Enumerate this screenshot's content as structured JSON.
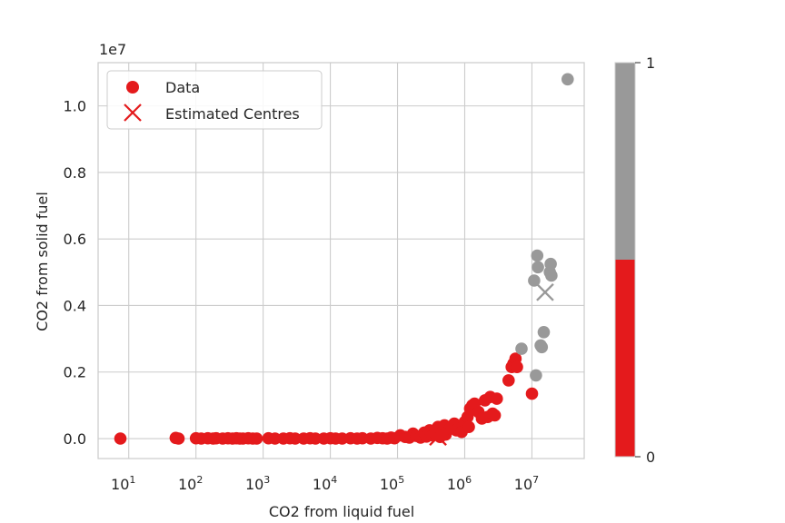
{
  "chart_data": {
    "type": "scatter",
    "title": "",
    "xlabel": "CO2 from liquid fuel",
    "ylabel": "CO2 from solid fuel",
    "xscale": "log",
    "xlim": [
      3.5,
      60000000
    ],
    "ylim": [
      -0.06,
      1.13
    ],
    "y_offset_label": "1e7",
    "x_ticks": [
      {
        "base": "10",
        "exp": "1",
        "value": 10
      },
      {
        "base": "10",
        "exp": "2",
        "value": 100
      },
      {
        "base": "10",
        "exp": "3",
        "value": 1000
      },
      {
        "base": "10",
        "exp": "4",
        "value": 10000
      },
      {
        "base": "10",
        "exp": "5",
        "value": 100000
      },
      {
        "base": "10",
        "exp": "6",
        "value": 1000000
      },
      {
        "base": "10",
        "exp": "7",
        "value": 10000000
      }
    ],
    "y_ticks": [
      "0.0",
      "0.2",
      "0.4",
      "0.6",
      "0.8",
      "1.0"
    ],
    "grid": true,
    "legend": {
      "position": "top-left",
      "entries": [
        {
          "label": "Data",
          "marker": "circle"
        },
        {
          "label": "Estimated Centres",
          "marker": "x"
        }
      ]
    },
    "colorbar": {
      "ticks": [
        "0",
        "1"
      ],
      "colors": [
        "#e41a1c",
        "#999999"
      ],
      "boundary": 0.5
    },
    "colors": {
      "cluster0": "#e41a1c",
      "cluster1": "#999999"
    },
    "series": [
      {
        "cluster": 0,
        "points": [
          [
            7.5,
            0
          ],
          [
            50,
            0.002
          ],
          [
            55,
            0
          ],
          [
            100,
            0.001
          ],
          [
            120,
            0
          ],
          [
            150,
            0.001
          ],
          [
            180,
            0
          ],
          [
            200,
            0.001
          ],
          [
            250,
            0
          ],
          [
            300,
            0.001
          ],
          [
            350,
            0
          ],
          [
            400,
            0.001
          ],
          [
            450,
            0
          ],
          [
            500,
            0
          ],
          [
            600,
            0.001
          ],
          [
            700,
            0
          ],
          [
            800,
            0
          ],
          [
            1200,
            0.001
          ],
          [
            1500,
            0
          ],
          [
            2000,
            0
          ],
          [
            2500,
            0.001
          ],
          [
            3000,
            0
          ],
          [
            4000,
            0
          ],
          [
            5000,
            0.001
          ],
          [
            6000,
            0
          ],
          [
            8000,
            0
          ],
          [
            10000,
            0.001
          ],
          [
            12000,
            0
          ],
          [
            15000,
            0
          ],
          [
            20000,
            0.001
          ],
          [
            25000,
            0
          ],
          [
            30000,
            0.001
          ],
          [
            40000,
            0
          ],
          [
            50000,
            0.002
          ],
          [
            60000,
            0.001
          ],
          [
            70000,
            0
          ],
          [
            80000,
            0.003
          ],
          [
            90000,
            0.001
          ],
          [
            110000,
            0.01
          ],
          [
            130000,
            0.005
          ],
          [
            150000,
            0.003
          ],
          [
            170000,
            0.015
          ],
          [
            190000,
            0.008
          ],
          [
            220000,
            0.003
          ],
          [
            250000,
            0.018
          ],
          [
            270000,
            0.006
          ],
          [
            300000,
            0.025
          ],
          [
            330000,
            0.01
          ],
          [
            360000,
            0.015
          ],
          [
            400000,
            0.035
          ],
          [
            430000,
            0.005
          ],
          [
            460000,
            0.02
          ],
          [
            500000,
            0.04
          ],
          [
            520000,
            0.012
          ],
          [
            600000,
            0.03
          ],
          [
            700000,
            0.045
          ],
          [
            750000,
            0.025
          ],
          [
            800000,
            0.03
          ],
          [
            900000,
            0.02
          ],
          [
            1000000,
            0.05
          ],
          [
            1100000,
            0.065
          ],
          [
            1150000,
            0.035
          ],
          [
            1200000,
            0.09
          ],
          [
            1300000,
            0.1
          ],
          [
            1400000,
            0.105
          ],
          [
            1600000,
            0.08
          ],
          [
            1800000,
            0.06
          ],
          [
            2000000,
            0.115
          ],
          [
            2200000,
            0.065
          ],
          [
            2400000,
            0.125
          ],
          [
            2600000,
            0.075
          ],
          [
            2800000,
            0.07
          ],
          [
            3000000,
            0.12
          ],
          [
            4500000,
            0.175
          ],
          [
            5000000,
            0.215
          ],
          [
            5300000,
            0.225
          ],
          [
            5700000,
            0.24
          ],
          [
            6000000,
            0.215
          ],
          [
            10000000,
            0.135
          ]
        ]
      },
      {
        "cluster": 1,
        "points": [
          [
            7000000,
            0.27
          ],
          [
            10800000,
            0.475
          ],
          [
            11500000,
            0.19
          ],
          [
            12000000,
            0.55
          ],
          [
            12300000,
            0.515
          ],
          [
            13500000,
            0.28
          ],
          [
            14000000,
            0.275
          ],
          [
            15000000,
            0.32
          ],
          [
            18500000,
            0.5
          ],
          [
            19000000,
            0.525
          ],
          [
            19500000,
            0.49
          ],
          [
            34000000,
            1.08
          ]
        ]
      }
    ],
    "centres": [
      {
        "cluster": 0,
        "x": 400000,
        "y": 0.005
      },
      {
        "cluster": 1,
        "x": 15700000,
        "y": 0.44
      }
    ]
  }
}
